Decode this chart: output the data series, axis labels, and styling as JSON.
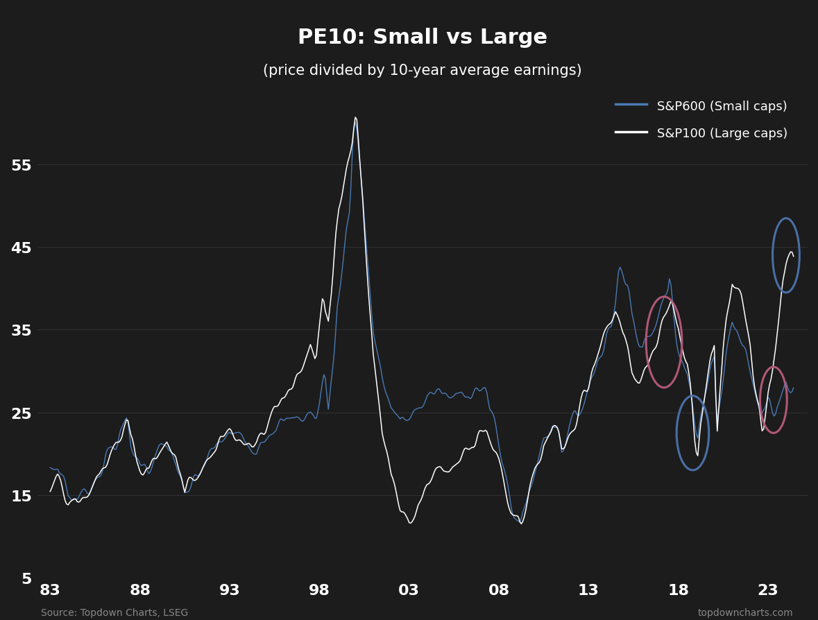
{
  "title": "PE10: Small vs Large",
  "subtitle": "(price divided by 10-year average earnings)",
  "bg_color": "#1c1c1c",
  "text_color": "#ffffff",
  "small_cap_color": "#4a7ab5",
  "large_cap_color": "#ffffff",
  "source_text": "Source: Topdown Charts, LSEG",
  "watermark": "topdowncharts.com",
  "ylim": [
    5,
    65
  ],
  "yticks": [
    5,
    15,
    25,
    35,
    45,
    55
  ],
  "xticks": [
    1983,
    1988,
    1993,
    1998,
    2003,
    2008,
    2013,
    2018,
    2023
  ],
  "xlabels": [
    "83",
    "88",
    "93",
    "98",
    "03",
    "08",
    "13",
    "18",
    "23"
  ],
  "legend_labels": [
    "S&P600 (Small caps)",
    "S&P100 (Large caps)"
  ],
  "xlim_left": 1982.3,
  "xlim_right": 2025.2
}
